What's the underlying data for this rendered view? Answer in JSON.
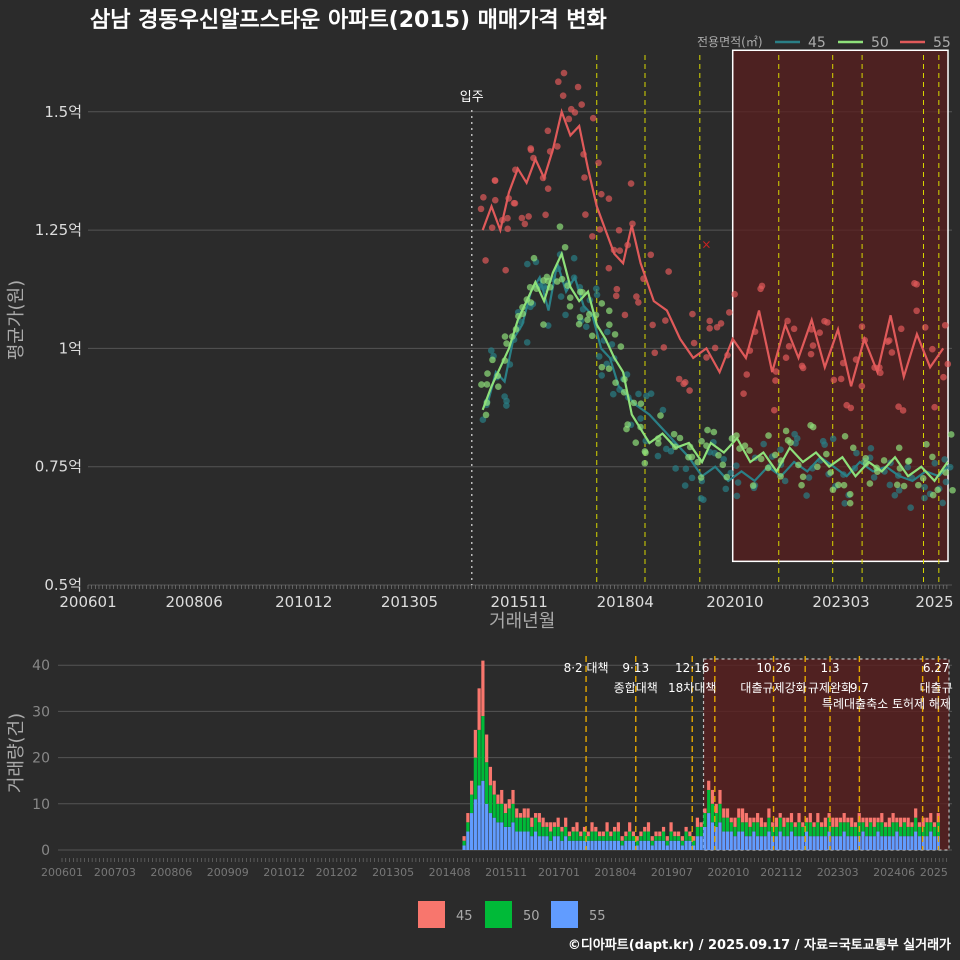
{
  "title": "삼남 경동우신알프스타운 아파트(2015) 매매가격 변화",
  "footer": "©디아파트(dapt.kr) / 2025.09.17 / 자료=국토교통부 실거래가",
  "colors": {
    "background": "#2b2b2b",
    "grid": "#555555",
    "s45_line": "#2a7f86",
    "s50_line": "#8ee07a",
    "s55_line": "#e05a5a",
    "vol45": "#f8766d",
    "vol50": "#00ba38",
    "vol55": "#619cff",
    "vline": "#d8d800",
    "vline_bottom": "#e6a800",
    "highlight_fill": "#5a1f1f",
    "movein_line": "#bbbbbb"
  },
  "chart_data": [
    {
      "type": "line",
      "title": "삼남 경동우신알프스타운 아파트(2015) 매매가격 변화",
      "xlabel": "거래년월",
      "ylabel": "평균가(원)",
      "x_ticks": [
        "200601",
        "200806",
        "201012",
        "201305",
        "201511",
        "201804",
        "202010",
        "202303",
        "2025"
      ],
      "y_ticks": [
        "0.5억",
        "0.75억",
        "1억",
        "1.25억",
        "1.5억"
      ],
      "ylim": [
        0.5,
        1.62
      ],
      "xlim": [
        2006.0,
        2025.7
      ],
      "grid": true,
      "legend_title": "전용면적(㎡)",
      "legend_position": "top-right",
      "movein_label": "입주",
      "movein_x": 2014.75,
      "vlines_x": [
        2017.6,
        2018.7,
        2019.95,
        2021.75,
        2022.98,
        2023.65,
        2025.05,
        2025.4
      ],
      "highlight_range": [
        2020.7,
        2025.7
      ],
      "highlight_y": [
        0.55,
        1.63
      ],
      "marker_x": {
        "x": 2020.1,
        "y": 1.22,
        "label": "×"
      },
      "series": [
        {
          "name": "45",
          "color": "#2a7f86",
          "points": [
            [
              2015.1,
              0.88
            ],
            [
              2015.3,
              0.95
            ],
            [
              2015.5,
              0.93
            ],
            [
              2015.7,
              1.02
            ],
            [
              2015.9,
              1.05
            ],
            [
              2016.1,
              1.12
            ],
            [
              2016.3,
              1.15
            ],
            [
              2016.5,
              1.08
            ],
            [
              2016.7,
              1.18
            ],
            [
              2016.9,
              1.12
            ],
            [
              2017.1,
              1.15
            ],
            [
              2017.3,
              1.09
            ],
            [
              2017.5,
              1.07
            ],
            [
              2017.7,
              1.0
            ],
            [
              2017.9,
              0.98
            ],
            [
              2018.1,
              0.92
            ],
            [
              2018.3,
              0.9
            ],
            [
              2018.5,
              0.88
            ],
            [
              2018.8,
              0.86
            ],
            [
              2019.1,
              0.83
            ],
            [
              2019.4,
              0.8
            ],
            [
              2019.7,
              0.77
            ],
            [
              2020.0,
              0.73
            ],
            [
              2020.3,
              0.75
            ],
            [
              2020.6,
              0.72
            ],
            [
              2020.9,
              0.74
            ],
            [
              2021.2,
              0.72
            ],
            [
              2021.5,
              0.75
            ],
            [
              2021.8,
              0.73
            ],
            [
              2022.1,
              0.76
            ],
            [
              2022.4,
              0.74
            ],
            [
              2022.7,
              0.77
            ],
            [
              2023.0,
              0.75
            ],
            [
              2023.3,
              0.73
            ],
            [
              2023.6,
              0.76
            ],
            [
              2023.9,
              0.74
            ],
            [
              2024.2,
              0.75
            ],
            [
              2024.5,
              0.73
            ],
            [
              2024.8,
              0.72
            ],
            [
              2025.1,
              0.74
            ],
            [
              2025.4,
              0.73
            ],
            [
              2025.6,
              0.75
            ]
          ]
        },
        {
          "name": "50",
          "color": "#8ee07a",
          "points": [
            [
              2015.0,
              0.87
            ],
            [
              2015.2,
              0.92
            ],
            [
              2015.4,
              0.96
            ],
            [
              2015.6,
              1.0
            ],
            [
              2015.8,
              1.06
            ],
            [
              2016.0,
              1.1
            ],
            [
              2016.2,
              1.14
            ],
            [
              2016.4,
              1.1
            ],
            [
              2016.6,
              1.16
            ],
            [
              2016.8,
              1.2
            ],
            [
              2017.0,
              1.13
            ],
            [
              2017.2,
              1.1
            ],
            [
              2017.4,
              1.12
            ],
            [
              2017.6,
              1.05
            ],
            [
              2017.8,
              1.02
            ],
            [
              2018.0,
              0.98
            ],
            [
              2018.2,
              0.95
            ],
            [
              2018.4,
              0.86
            ],
            [
              2018.6,
              0.83
            ],
            [
              2018.8,
              0.8
            ],
            [
              2019.1,
              0.82
            ],
            [
              2019.4,
              0.79
            ],
            [
              2019.7,
              0.8
            ],
            [
              2020.0,
              0.76
            ],
            [
              2020.2,
              0.8
            ],
            [
              2020.5,
              0.78
            ],
            [
              2020.8,
              0.81
            ],
            [
              2021.1,
              0.76
            ],
            [
              2021.4,
              0.78
            ],
            [
              2021.7,
              0.74
            ],
            [
              2022.0,
              0.79
            ],
            [
              2022.3,
              0.76
            ],
            [
              2022.6,
              0.78
            ],
            [
              2022.9,
              0.75
            ],
            [
              2023.2,
              0.77
            ],
            [
              2023.5,
              0.73
            ],
            [
              2023.8,
              0.76
            ],
            [
              2024.1,
              0.74
            ],
            [
              2024.4,
              0.77
            ],
            [
              2024.7,
              0.73
            ],
            [
              2025.0,
              0.75
            ],
            [
              2025.3,
              0.72
            ],
            [
              2025.6,
              0.76
            ]
          ]
        },
        {
          "name": "55",
          "color": "#e05a5a",
          "points": [
            [
              2015.0,
              1.25
            ],
            [
              2015.2,
              1.3
            ],
            [
              2015.4,
              1.25
            ],
            [
              2015.6,
              1.33
            ],
            [
              2015.8,
              1.38
            ],
            [
              2016.0,
              1.35
            ],
            [
              2016.2,
              1.4
            ],
            [
              2016.4,
              1.36
            ],
            [
              2016.6,
              1.42
            ],
            [
              2016.8,
              1.5
            ],
            [
              2017.0,
              1.45
            ],
            [
              2017.2,
              1.47
            ],
            [
              2017.4,
              1.38
            ],
            [
              2017.6,
              1.3
            ],
            [
              2017.8,
              1.25
            ],
            [
              2018.0,
              1.2
            ],
            [
              2018.2,
              1.18
            ],
            [
              2018.4,
              1.26
            ],
            [
              2018.6,
              1.18
            ],
            [
              2018.9,
              1.1
            ],
            [
              2019.2,
              1.08
            ],
            [
              2019.5,
              1.02
            ],
            [
              2019.8,
              0.98
            ],
            [
              2020.1,
              1.0
            ],
            [
              2020.4,
              0.95
            ],
            [
              2020.7,
              1.02
            ],
            [
              2021.0,
              0.98
            ],
            [
              2021.3,
              1.08
            ],
            [
              2021.6,
              0.95
            ],
            [
              2021.9,
              1.05
            ],
            [
              2022.2,
              0.98
            ],
            [
              2022.5,
              1.06
            ],
            [
              2022.8,
              0.96
            ],
            [
              2023.1,
              1.04
            ],
            [
              2023.4,
              0.92
            ],
            [
              2023.7,
              1.02
            ],
            [
              2024.0,
              0.95
            ],
            [
              2024.3,
              1.07
            ],
            [
              2024.6,
              0.94
            ],
            [
              2024.9,
              1.03
            ],
            [
              2025.2,
              0.96
            ],
            [
              2025.5,
              1.0
            ]
          ]
        }
      ]
    },
    {
      "type": "bar",
      "ylabel": "거래량(건)",
      "x_ticks": [
        "200601",
        "200703",
        "200806",
        "200909",
        "201012",
        "201202",
        "201305",
        "201408",
        "201511",
        "201701",
        "201804",
        "201907",
        "202010",
        "202112",
        "202303",
        "202406",
        "2025"
      ],
      "y_ticks": [
        "0",
        "10",
        "20",
        "30",
        "40"
      ],
      "ylim": [
        0,
        42
      ],
      "xlim": [
        2006.0,
        2025.7
      ],
      "stacked": true,
      "legend": [
        "45",
        "50",
        "55"
      ],
      "legend_position": "bottom",
      "highlight_range": [
        2020.2,
        2025.7
      ],
      "vlines_x": [
        2017.6,
        2018.7,
        2019.95,
        2020.45,
        2021.75,
        2022.45,
        2023.0,
        2023.65,
        2025.05,
        2025.4
      ],
      "annotations": [
        {
          "x": 2017.6,
          "line1": "8·2 대책",
          "line2": ""
        },
        {
          "x": 2018.7,
          "line1": "9·13",
          "line2": "종합대책"
        },
        {
          "x": 2019.95,
          "line1": "12·16",
          "line2": "18차대책"
        },
        {
          "x": 2021.75,
          "line1": "10.26",
          "line2": "대출규제강화"
        },
        {
          "x": 2023.0,
          "line1": "1.3",
          "line2": "규제완화"
        },
        {
          "x": 2023.65,
          "line1": "",
          "line2": "9.7"
        },
        {
          "x": 2025.35,
          "line1": "6.27",
          "line2": "대출규"
        }
      ],
      "annotation_extra": "특례대출축소 토허제 해제",
      "monthly": {
        "start": 2014.9,
        "step": 0.0833,
        "s45": [
          1,
          2,
          3,
          6,
          9,
          12,
          6,
          4,
          3,
          2,
          3,
          2,
          2,
          3,
          2,
          1,
          2,
          2,
          2,
          1,
          2,
          2,
          1,
          2,
          1,
          2,
          1,
          2,
          1,
          1,
          2,
          1,
          1,
          1,
          2,
          1,
          1,
          1,
          2,
          1,
          1,
          2,
          1,
          1,
          2,
          1,
          1,
          1,
          1,
          2,
          1,
          1,
          1,
          1,
          1,
          2,
          1,
          1,
          1,
          1,
          1,
          1,
          2,
          1,
          1,
          2,
          3,
          2,
          3,
          2,
          2,
          1,
          2,
          2,
          3,
          2,
          2,
          1,
          2,
          2,
          1,
          2,
          1,
          2,
          1,
          2,
          1,
          2,
          1,
          2,
          1,
          1,
          2,
          1,
          2,
          1,
          2,
          1,
          2,
          2,
          1,
          2,
          1,
          2,
          1,
          2,
          1,
          2,
          1,
          2,
          1,
          2,
          1,
          2,
          2,
          1,
          2,
          1,
          2,
          1,
          2,
          1,
          2,
          1,
          2,
          1,
          2
        ],
        "s50": [
          1,
          2,
          4,
          9,
          12,
          14,
          9,
          6,
          5,
          4,
          4,
          3,
          4,
          4,
          3,
          3,
          3,
          3,
          2,
          3,
          3,
          2,
          2,
          2,
          2,
          2,
          2,
          2,
          1,
          2,
          2,
          1,
          2,
          1,
          2,
          2,
          1,
          1,
          2,
          1,
          2,
          2,
          1,
          1,
          2,
          1,
          1,
          1,
          2,
          2,
          1,
          1,
          1,
          2,
          1,
          2,
          1,
          1,
          1,
          2,
          1,
          1,
          2,
          2,
          3,
          5,
          4,
          3,
          4,
          3,
          3,
          2,
          2,
          3,
          2,
          3,
          2,
          2,
          3,
          2,
          2,
          3,
          2,
          2,
          3,
          2,
          3,
          2,
          2,
          3,
          2,
          2,
          3,
          2,
          3,
          2,
          2,
          3,
          2,
          2,
          3,
          2,
          3,
          2,
          2,
          3,
          2,
          2,
          3,
          2,
          2,
          3,
          2,
          2,
          3,
          2,
          2,
          3,
          2,
          2,
          3,
          2,
          2,
          3,
          2,
          2,
          3
        ],
        "s55": [
          1,
          4,
          8,
          11,
          14,
          15,
          10,
          8,
          7,
          6,
          6,
          5,
          5,
          6,
          4,
          4,
          4,
          4,
          3,
          4,
          3,
          3,
          3,
          2,
          3,
          3,
          2,
          3,
          2,
          2,
          2,
          2,
          2,
          2,
          2,
          2,
          2,
          2,
          2,
          2,
          2,
          2,
          1,
          2,
          2,
          2,
          1,
          2,
          2,
          2,
          1,
          2,
          2,
          2,
          1,
          2,
          2,
          2,
          1,
          2,
          2,
          1,
          3,
          3,
          5,
          8,
          6,
          5,
          6,
          4,
          4,
          4,
          3,
          4,
          4,
          3,
          3,
          4,
          3,
          3,
          3,
          4,
          3,
          3,
          4,
          3,
          3,
          4,
          3,
          3,
          3,
          4,
          3,
          3,
          3,
          3,
          3,
          4,
          3,
          3,
          3,
          4,
          3,
          3,
          3,
          3,
          4,
          3,
          3,
          3,
          4,
          3,
          3,
          3,
          3,
          4,
          3,
          3,
          3,
          3,
          4,
          3,
          3,
          3,
          4,
          3,
          3
        ]
      }
    }
  ]
}
